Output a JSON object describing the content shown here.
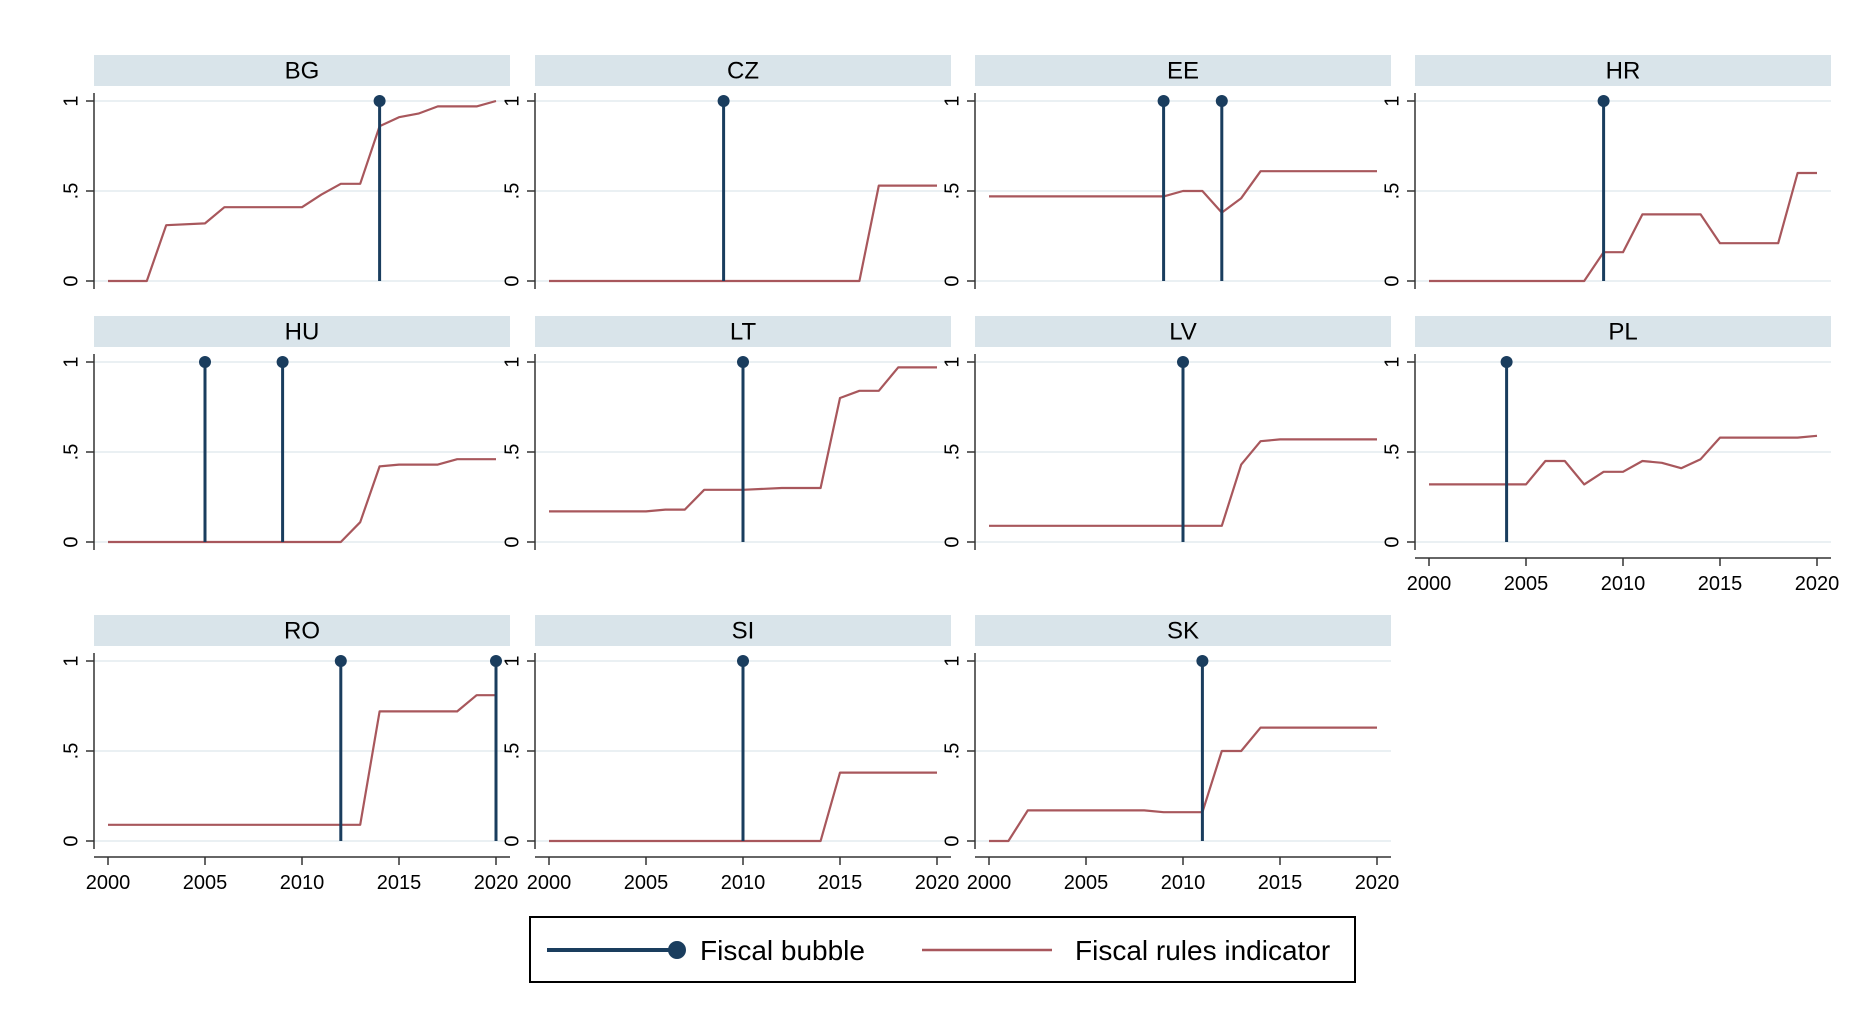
{
  "colors": {
    "strip": "#d9e4ea",
    "grid": "#eaf0f3",
    "axis": "#333333",
    "bubble": "#1a3d5e",
    "rules": "#a8575c",
    "legend_border": "#000000"
  },
  "legend": {
    "bubble_label": "Fiscal bubble",
    "rules_label": "Fiscal rules indicator"
  },
  "chart_data": {
    "type": "line",
    "xlim": [
      2000,
      2020
    ],
    "ylim": [
      0,
      1
    ],
    "x_ticks": [
      2000,
      2005,
      2010,
      2015,
      2020
    ],
    "x_tick_labels": [
      "2000",
      "2005",
      "2010",
      "2015",
      "2020"
    ],
    "y_ticks": [
      0,
      0.5,
      1
    ],
    "y_tick_labels": [
      "0",
      ".5",
      "1"
    ],
    "grid": true,
    "legend_position": "bottom",
    "series_names": [
      "Fiscal bubble",
      "Fiscal rules indicator"
    ],
    "panels": [
      {
        "country": "BG",
        "bubbles": [
          2014
        ],
        "rules": [
          [
            2000,
            0
          ],
          [
            2002,
            0
          ],
          [
            2003,
            0.31
          ],
          [
            2005,
            0.32
          ],
          [
            2006,
            0.41
          ],
          [
            2007,
            0.41
          ],
          [
            2010,
            0.41
          ],
          [
            2011,
            0.48
          ],
          [
            2012,
            0.54
          ],
          [
            2013,
            0.54
          ],
          [
            2014,
            0.86
          ],
          [
            2015,
            0.91
          ],
          [
            2016,
            0.93
          ],
          [
            2017,
            0.97
          ],
          [
            2019,
            0.97
          ],
          [
            2020,
            1.0
          ]
        ]
      },
      {
        "country": "CZ",
        "bubbles": [
          2009
        ],
        "rules": [
          [
            2000,
            0
          ],
          [
            2016,
            0
          ],
          [
            2017,
            0.53
          ],
          [
            2020,
            0.53
          ]
        ]
      },
      {
        "country": "EE",
        "bubbles": [
          2009,
          2012
        ],
        "rules": [
          [
            2000,
            0.47
          ],
          [
            2009,
            0.47
          ],
          [
            2010,
            0.5
          ],
          [
            2011,
            0.5
          ],
          [
            2012,
            0.38
          ],
          [
            2013,
            0.46
          ],
          [
            2014,
            0.61
          ],
          [
            2020,
            0.61
          ]
        ]
      },
      {
        "country": "HR",
        "bubbles": [
          2009
        ],
        "rules": [
          [
            2000,
            0
          ],
          [
            2008,
            0
          ],
          [
            2009,
            0.16
          ],
          [
            2010,
            0.16
          ],
          [
            2011,
            0.37
          ],
          [
            2014,
            0.37
          ],
          [
            2015,
            0.21
          ],
          [
            2018,
            0.21
          ],
          [
            2019,
            0.6
          ],
          [
            2020,
            0.6
          ]
        ]
      },
      {
        "country": "HU",
        "bubbles": [
          2005,
          2009
        ],
        "rules": [
          [
            2000,
            0
          ],
          [
            2012,
            0
          ],
          [
            2013,
            0.11
          ],
          [
            2014,
            0.42
          ],
          [
            2015,
            0.43
          ],
          [
            2017,
            0.43
          ],
          [
            2018,
            0.46
          ],
          [
            2020,
            0.46
          ]
        ]
      },
      {
        "country": "LT",
        "bubbles": [
          2010
        ],
        "rules": [
          [
            2000,
            0.17
          ],
          [
            2005,
            0.17
          ],
          [
            2006,
            0.18
          ],
          [
            2007,
            0.18
          ],
          [
            2008,
            0.29
          ],
          [
            2010,
            0.29
          ],
          [
            2012,
            0.3
          ],
          [
            2014,
            0.3
          ],
          [
            2015,
            0.8
          ],
          [
            2016,
            0.84
          ],
          [
            2017,
            0.84
          ],
          [
            2018,
            0.97
          ],
          [
            2020,
            0.97
          ]
        ]
      },
      {
        "country": "LV",
        "bubbles": [
          2010
        ],
        "rules": [
          [
            2000,
            0.09
          ],
          [
            2012,
            0.09
          ],
          [
            2013,
            0.43
          ],
          [
            2014,
            0.56
          ],
          [
            2015,
            0.57
          ],
          [
            2020,
            0.57
          ]
        ]
      },
      {
        "country": "PL",
        "bubbles": [
          2004
        ],
        "rules": [
          [
            2000,
            0.32
          ],
          [
            2005,
            0.32
          ],
          [
            2006,
            0.45
          ],
          [
            2007,
            0.45
          ],
          [
            2008,
            0.32
          ],
          [
            2009,
            0.39
          ],
          [
            2010,
            0.39
          ],
          [
            2011,
            0.45
          ],
          [
            2012,
            0.44
          ],
          [
            2013,
            0.41
          ],
          [
            2014,
            0.46
          ],
          [
            2015,
            0.58
          ],
          [
            2019,
            0.58
          ],
          [
            2020,
            0.59
          ]
        ]
      },
      {
        "country": "RO",
        "bubbles": [
          2012,
          2020
        ],
        "rules": [
          [
            2000,
            0.09
          ],
          [
            2013,
            0.09
          ],
          [
            2014,
            0.72
          ],
          [
            2018,
            0.72
          ],
          [
            2019,
            0.81
          ],
          [
            2020,
            0.81
          ]
        ]
      },
      {
        "country": "SI",
        "bubbles": [
          2010
        ],
        "rules": [
          [
            2000,
            0
          ],
          [
            2014,
            0
          ],
          [
            2015,
            0.38
          ],
          [
            2020,
            0.38
          ]
        ]
      },
      {
        "country": "SK",
        "bubbles": [
          2011
        ],
        "rules": [
          [
            2000,
            0
          ],
          [
            2001,
            0
          ],
          [
            2002,
            0.17
          ],
          [
            2008,
            0.17
          ],
          [
            2009,
            0.16
          ],
          [
            2011,
            0.16
          ],
          [
            2012,
            0.5
          ],
          [
            2013,
            0.5
          ],
          [
            2014,
            0.63
          ],
          [
            2020,
            0.63
          ]
        ]
      }
    ]
  }
}
